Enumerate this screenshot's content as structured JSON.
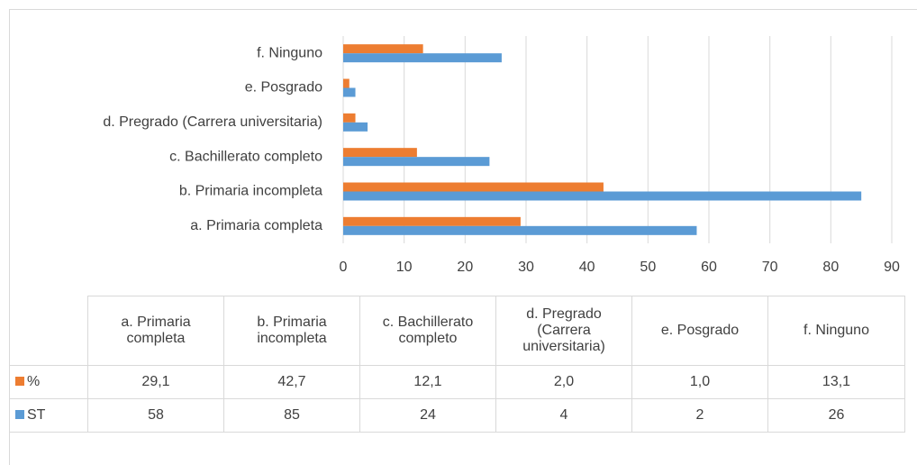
{
  "chart_data": {
    "type": "barh",
    "categories": [
      "a. Primaria completa",
      "b. Primaria incompleta",
      "c. Bachillerato completo",
      "d. Pregrado (Carrera universitaria)",
      "e. Posgrado",
      "f. Ninguno"
    ],
    "series": [
      {
        "name": "%",
        "color": "#ed7d31",
        "values": [
          29.1,
          42.7,
          12.1,
          2.0,
          1.0,
          13.1
        ],
        "value_labels": [
          "29,1",
          "42,7",
          "12,1",
          "2,0",
          "1,0",
          "13,1"
        ]
      },
      {
        "name": "ST",
        "color": "#5b9bd5",
        "values": [
          58,
          85,
          24,
          4,
          2,
          26
        ]
      }
    ],
    "xlim": [
      0,
      90
    ],
    "xticks": [
      0,
      10,
      20,
      30,
      40,
      50,
      60,
      70,
      80,
      90
    ],
    "grid": true,
    "legend": "table"
  }
}
